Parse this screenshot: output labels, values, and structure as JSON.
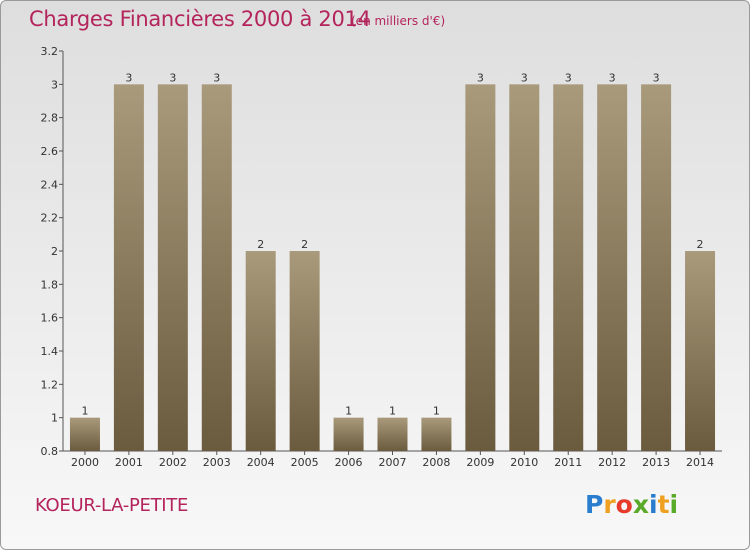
{
  "chart_data": {
    "type": "bar",
    "title": "Charges Financières 2000 à 2014",
    "subtitle": "(en milliers d'€)",
    "categories": [
      "2000",
      "2001",
      "2002",
      "2003",
      "2004",
      "2005",
      "2006",
      "2007",
      "2008",
      "2009",
      "2010",
      "2011",
      "2012",
      "2013",
      "2014"
    ],
    "values": [
      1,
      3,
      3,
      3,
      2,
      2,
      1,
      1,
      1,
      3,
      3,
      3,
      3,
      3,
      2
    ],
    "data_labels": [
      "1",
      "3",
      "3",
      "3",
      "2",
      "2",
      "1",
      "1",
      "1",
      "3",
      "3",
      "3",
      "3",
      "3",
      "2"
    ],
    "ylim": [
      0.8,
      3.2
    ],
    "yticks": [
      0.8,
      1,
      1.2,
      1.4,
      1.6,
      1.8,
      2,
      2.2,
      2.4,
      2.6,
      2.8,
      3,
      3.2
    ],
    "ytick_labels": [
      "0.8",
      "1",
      "1.2",
      "1.4",
      "1.6",
      "1.8",
      "2",
      "2.2",
      "2.4",
      "2.6",
      "2.8",
      "3",
      "3.2"
    ],
    "grid": false,
    "bar_color_top": "#a99a7c",
    "bar_color_bottom": "#6b5b3e"
  },
  "commune": "KOEUR-LA-PETITE",
  "logo": {
    "letters": [
      "P",
      "r",
      "o",
      "x",
      "i",
      "t",
      "i"
    ],
    "colors": [
      "#2a7ccf",
      "#f0a020",
      "#e63a2a",
      "#5aaa2a",
      "#2a7ccf",
      "#f0a020",
      "#5aaa2a"
    ]
  }
}
